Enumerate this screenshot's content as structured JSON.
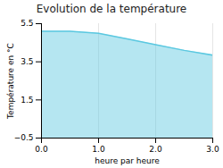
{
  "chart_data": {
    "type": "area",
    "title": "Evolution de la température",
    "xlabel": "heure par heure",
    "ylabel": "Température en °C",
    "x": [
      0,
      0.5,
      1.0,
      1.5,
      2.0,
      2.5,
      3.0
    ],
    "values": [
      5.1,
      5.1,
      5.0,
      4.7,
      4.4,
      4.1,
      3.85
    ],
    "color": "#5bc8e0",
    "xlim": [
      0,
      3
    ],
    "ylim": [
      -0.5,
      5.5
    ],
    "xticks": [
      0,
      1,
      2,
      3
    ],
    "yticks": [
      -0.5,
      1.5,
      3.5,
      5.5
    ],
    "grid": "x"
  }
}
